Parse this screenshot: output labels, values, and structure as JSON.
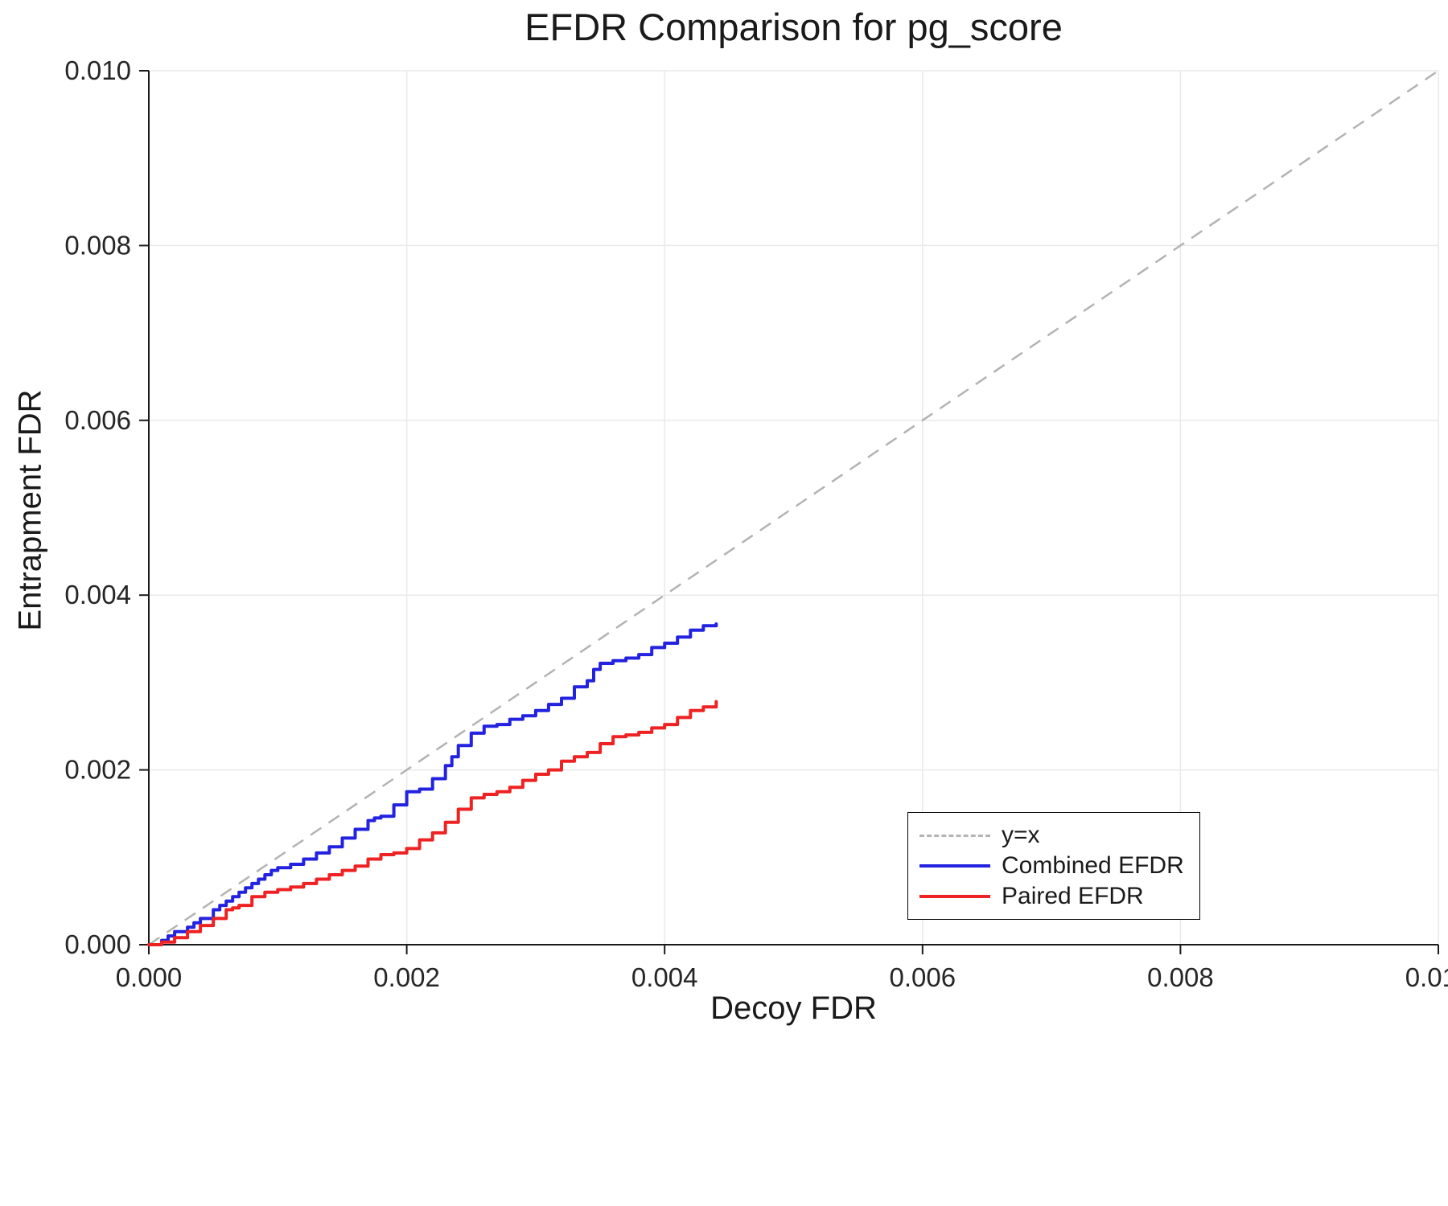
{
  "chart_data": {
    "type": "line",
    "title": "EFDR Comparison for pg_score",
    "xlabel": "Decoy FDR",
    "ylabel": "Entrapment FDR",
    "xlim": [
      0.0,
      0.01
    ],
    "ylim": [
      0.0,
      0.01
    ],
    "x_ticks": [
      0.0,
      0.002,
      0.004,
      0.006,
      0.008,
      0.01
    ],
    "y_ticks": [
      0.0,
      0.002,
      0.004,
      0.006,
      0.008,
      0.01
    ],
    "grid": true,
    "legend_position": "lower right",
    "colors": {
      "grid": "#e9e9e9",
      "spine": "#1a1a1a",
      "tick_text": "#262626",
      "reference": "#b3b3b3"
    },
    "reference_line": {
      "name": "y=x",
      "style": "dashed",
      "color": "#b3b3b3",
      "from": [
        0.0,
        0.0
      ],
      "to": [
        0.01,
        0.01
      ]
    },
    "series": [
      {
        "name": "Combined EFDR",
        "color": "#2222e0",
        "step": true,
        "x": [
          0.0,
          0.0001,
          0.00015,
          0.0002,
          0.0003,
          0.00035,
          0.0004,
          0.0005,
          0.00055,
          0.0006,
          0.00065,
          0.0007,
          0.00075,
          0.0008,
          0.00085,
          0.0009,
          0.00095,
          0.001,
          0.0011,
          0.0012,
          0.0013,
          0.0014,
          0.0015,
          0.0016,
          0.0017,
          0.00175,
          0.0018,
          0.0019,
          0.002,
          0.0021,
          0.0022,
          0.0023,
          0.00235,
          0.0024,
          0.0025,
          0.0026,
          0.0027,
          0.0028,
          0.0029,
          0.003,
          0.0031,
          0.0032,
          0.0033,
          0.0034,
          0.00345,
          0.0035,
          0.0036,
          0.0037,
          0.0038,
          0.0039,
          0.004,
          0.0041,
          0.0042,
          0.0043,
          0.0044
        ],
        "y": [
          0.0,
          5e-05,
          0.0001,
          0.00015,
          0.0002,
          0.00025,
          0.0003,
          0.0004,
          0.00045,
          0.0005,
          0.00055,
          0.0006,
          0.00065,
          0.0007,
          0.00075,
          0.0008,
          0.00085,
          0.00088,
          0.00092,
          0.00098,
          0.00105,
          0.00112,
          0.00122,
          0.00132,
          0.00142,
          0.00145,
          0.00147,
          0.0016,
          0.00175,
          0.00178,
          0.0019,
          0.00205,
          0.00215,
          0.00228,
          0.00242,
          0.0025,
          0.00252,
          0.00258,
          0.00262,
          0.00268,
          0.00275,
          0.00282,
          0.00295,
          0.00302,
          0.00315,
          0.00322,
          0.00325,
          0.00328,
          0.00332,
          0.0034,
          0.00345,
          0.00352,
          0.0036,
          0.00365,
          0.00367
        ]
      },
      {
        "name": "Paired EFDR",
        "color": "#ee2222",
        "step": true,
        "x": [
          0.0,
          0.0001,
          0.0002,
          0.0003,
          0.0004,
          0.0005,
          0.0006,
          0.00065,
          0.0007,
          0.0008,
          0.0009,
          0.001,
          0.0011,
          0.0012,
          0.0013,
          0.0014,
          0.0015,
          0.0016,
          0.0017,
          0.0018,
          0.0019,
          0.002,
          0.0021,
          0.0022,
          0.0023,
          0.0024,
          0.0025,
          0.0026,
          0.0027,
          0.0028,
          0.0029,
          0.003,
          0.0031,
          0.0032,
          0.0033,
          0.0034,
          0.0035,
          0.0036,
          0.0037,
          0.0038,
          0.0039,
          0.004,
          0.0041,
          0.0042,
          0.0043,
          0.0044
        ],
        "y": [
          0.0,
          3e-05,
          8e-05,
          0.00015,
          0.00022,
          0.0003,
          0.0004,
          0.00042,
          0.00045,
          0.00055,
          0.0006,
          0.00063,
          0.00066,
          0.0007,
          0.00075,
          0.0008,
          0.00085,
          0.0009,
          0.00098,
          0.00103,
          0.00105,
          0.0011,
          0.0012,
          0.00128,
          0.0014,
          0.00155,
          0.00168,
          0.00172,
          0.00175,
          0.0018,
          0.00188,
          0.00195,
          0.002,
          0.0021,
          0.00215,
          0.0022,
          0.0023,
          0.00238,
          0.0024,
          0.00243,
          0.00248,
          0.00252,
          0.0026,
          0.00268,
          0.00272,
          0.00278
        ]
      }
    ],
    "legend": {
      "entries": [
        "y=x",
        "Combined EFDR",
        "Paired EFDR"
      ]
    }
  }
}
